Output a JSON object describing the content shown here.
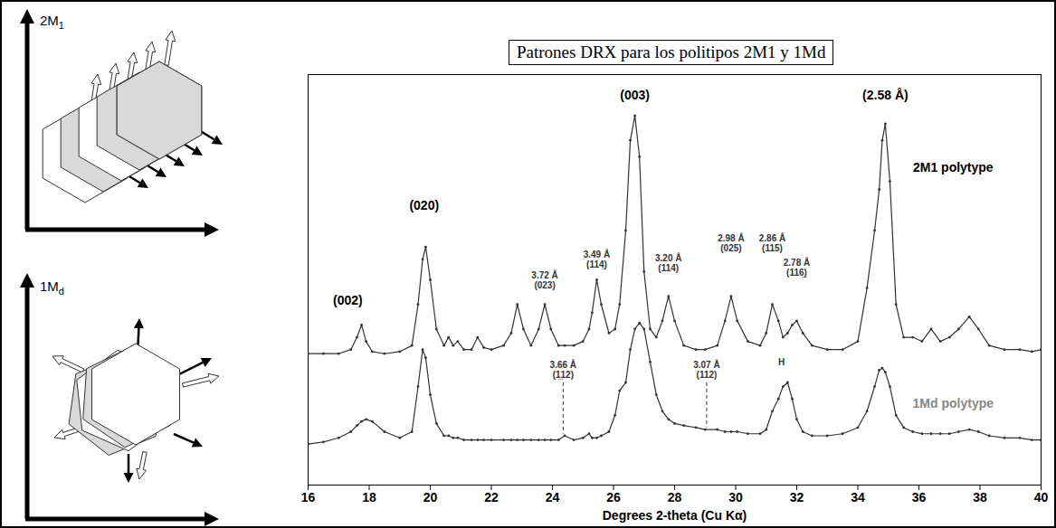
{
  "diagrams": [
    {
      "label": "2M1"
    },
    {
      "label": "1Md"
    }
  ],
  "chart_data": {
    "type": "line",
    "title": "Patrones DRX para los politipos 2M1 y 1Md",
    "x_label": "Degrees 2-theta (Cu Kα)",
    "x": [
      16,
      16.5,
      17,
      17.4,
      17.6,
      17.75,
      17.9,
      18.1,
      18.5,
      19,
      19.4,
      19.6,
      19.75,
      19.85,
      20,
      20.2,
      20.45,
      20.6,
      20.75,
      20.9,
      21.1,
      21.35,
      21.55,
      21.75,
      22,
      22.4,
      22.65,
      22.85,
      23.05,
      23.3,
      23.55,
      23.75,
      23.95,
      24.2,
      24.4,
      24.7,
      25,
      25.2,
      25.3,
      25.45,
      25.6,
      25.85,
      26.05,
      26.2,
      26.4,
      26.55,
      26.7,
      26.85,
      27,
      27.2,
      27.4,
      27.6,
      27.8,
      28,
      28.3,
      28.7,
      29,
      29.4,
      29.65,
      29.85,
      30.05,
      30.4,
      30.8,
      31,
      31.2,
      31.4,
      31.55,
      31.7,
      31.85,
      32,
      32.2,
      32.5,
      33,
      33.5,
      34,
      34.3,
      34.55,
      34.7,
      34.8,
      34.9,
      35.05,
      35.25,
      35.5,
      35.8,
      36.1,
      36.4,
      36.7,
      37,
      37.3,
      37.65,
      37.95,
      38.3,
      38.8,
      39.3,
      39.7,
      40
    ],
    "series": [
      {
        "name": "2M1 polytype",
        "color": "#333333",
        "marker": "dot",
        "values": [
          32,
          32,
          32,
          33,
          36,
          39,
          35,
          32.5,
          32,
          32.5,
          34,
          44,
          55,
          58,
          50,
          38,
          34,
          36,
          34,
          35,
          33,
          33,
          36,
          33.5,
          33,
          34,
          37,
          44,
          38,
          34,
          38,
          44,
          38,
          34,
          34,
          34,
          35,
          38,
          42,
          50,
          44,
          37,
          38,
          44,
          62,
          84,
          90,
          80,
          52,
          38,
          36,
          40,
          46,
          40,
          34,
          33,
          33,
          34,
          40,
          46,
          40,
          35,
          34,
          37,
          44,
          40,
          36,
          37,
          39,
          40,
          37,
          34,
          33,
          33,
          35,
          48,
          62,
          72,
          84,
          88,
          74,
          44,
          36,
          36,
          35,
          38,
          35,
          36,
          38,
          41,
          38,
          34,
          33,
          33,
          32.5,
          33
        ]
      },
      {
        "name": "1Md polytype",
        "color": "#333333",
        "marker": "dot",
        "values": [
          10,
          10.5,
          11.5,
          13,
          14.5,
          15.5,
          16,
          15.5,
          13,
          11.5,
          13,
          24,
          33,
          31,
          22,
          15,
          12,
          12,
          11.5,
          11.5,
          11,
          11,
          11,
          11,
          11,
          11,
          11,
          11,
          11,
          11,
          11,
          11,
          11,
          11,
          12,
          11,
          11.5,
          12.5,
          11.5,
          11.5,
          12,
          13,
          17,
          23,
          25,
          33,
          38,
          39.5,
          38,
          30,
          22,
          18,
          16,
          15,
          14.5,
          14,
          13.5,
          13.5,
          13,
          13,
          13,
          12.5,
          12.5,
          13.5,
          18,
          21,
          24,
          25,
          21,
          16,
          13,
          12,
          12,
          12.5,
          14,
          18,
          24,
          28,
          28.5,
          27.5,
          24,
          17,
          14,
          13,
          12.5,
          12.5,
          12.5,
          12.5,
          13,
          13.5,
          13,
          12,
          11.5,
          11.5,
          11,
          11
        ]
      }
    ],
    "xlim": [
      16,
      40
    ],
    "xticks": [
      16,
      18,
      20,
      22,
      24,
      26,
      28,
      30,
      32,
      34,
      36,
      38,
      40
    ],
    "ylim": [
      0,
      100
    ],
    "tick_labels": "x",
    "grid": false,
    "peak_labels": [
      {
        "text": "(002)",
        "x": 17.3,
        "y": 45
      },
      {
        "text": "(020)",
        "x": 19.8,
        "y": 68
      },
      {
        "text": "(003)",
        "x": 26.7,
        "y": 95
      },
      {
        "text": "(2.58 Å)",
        "x": 34.9,
        "y": 95
      }
    ],
    "annotations": [
      {
        "text": "3.72 Å\n(023)",
        "x": 23.75,
        "y": 50
      },
      {
        "text": "3.49 Å\n(114̲)",
        "x": 25.45,
        "y": 55
      },
      {
        "text": "3.20 Å\n(114)",
        "x": 27.8,
        "y": 54
      },
      {
        "text": "2.98 Å\n(025)",
        "x": 29.85,
        "y": 59
      },
      {
        "text": "2.86 Å\n(115)",
        "x": 31.2,
        "y": 59
      },
      {
        "text": "2.78 Å\n(116̲)",
        "x": 32.0,
        "y": 53
      },
      {
        "text": "3.66 Å\n(1̲12)",
        "x": 24.35,
        "y": 28,
        "line_style": "dashed"
      },
      {
        "text": "3.07 Å\n(112)",
        "x": 29.05,
        "y": 28,
        "line_style": "dashed"
      },
      {
        "text": "H",
        "x": 31.5,
        "y": 30
      }
    ]
  }
}
